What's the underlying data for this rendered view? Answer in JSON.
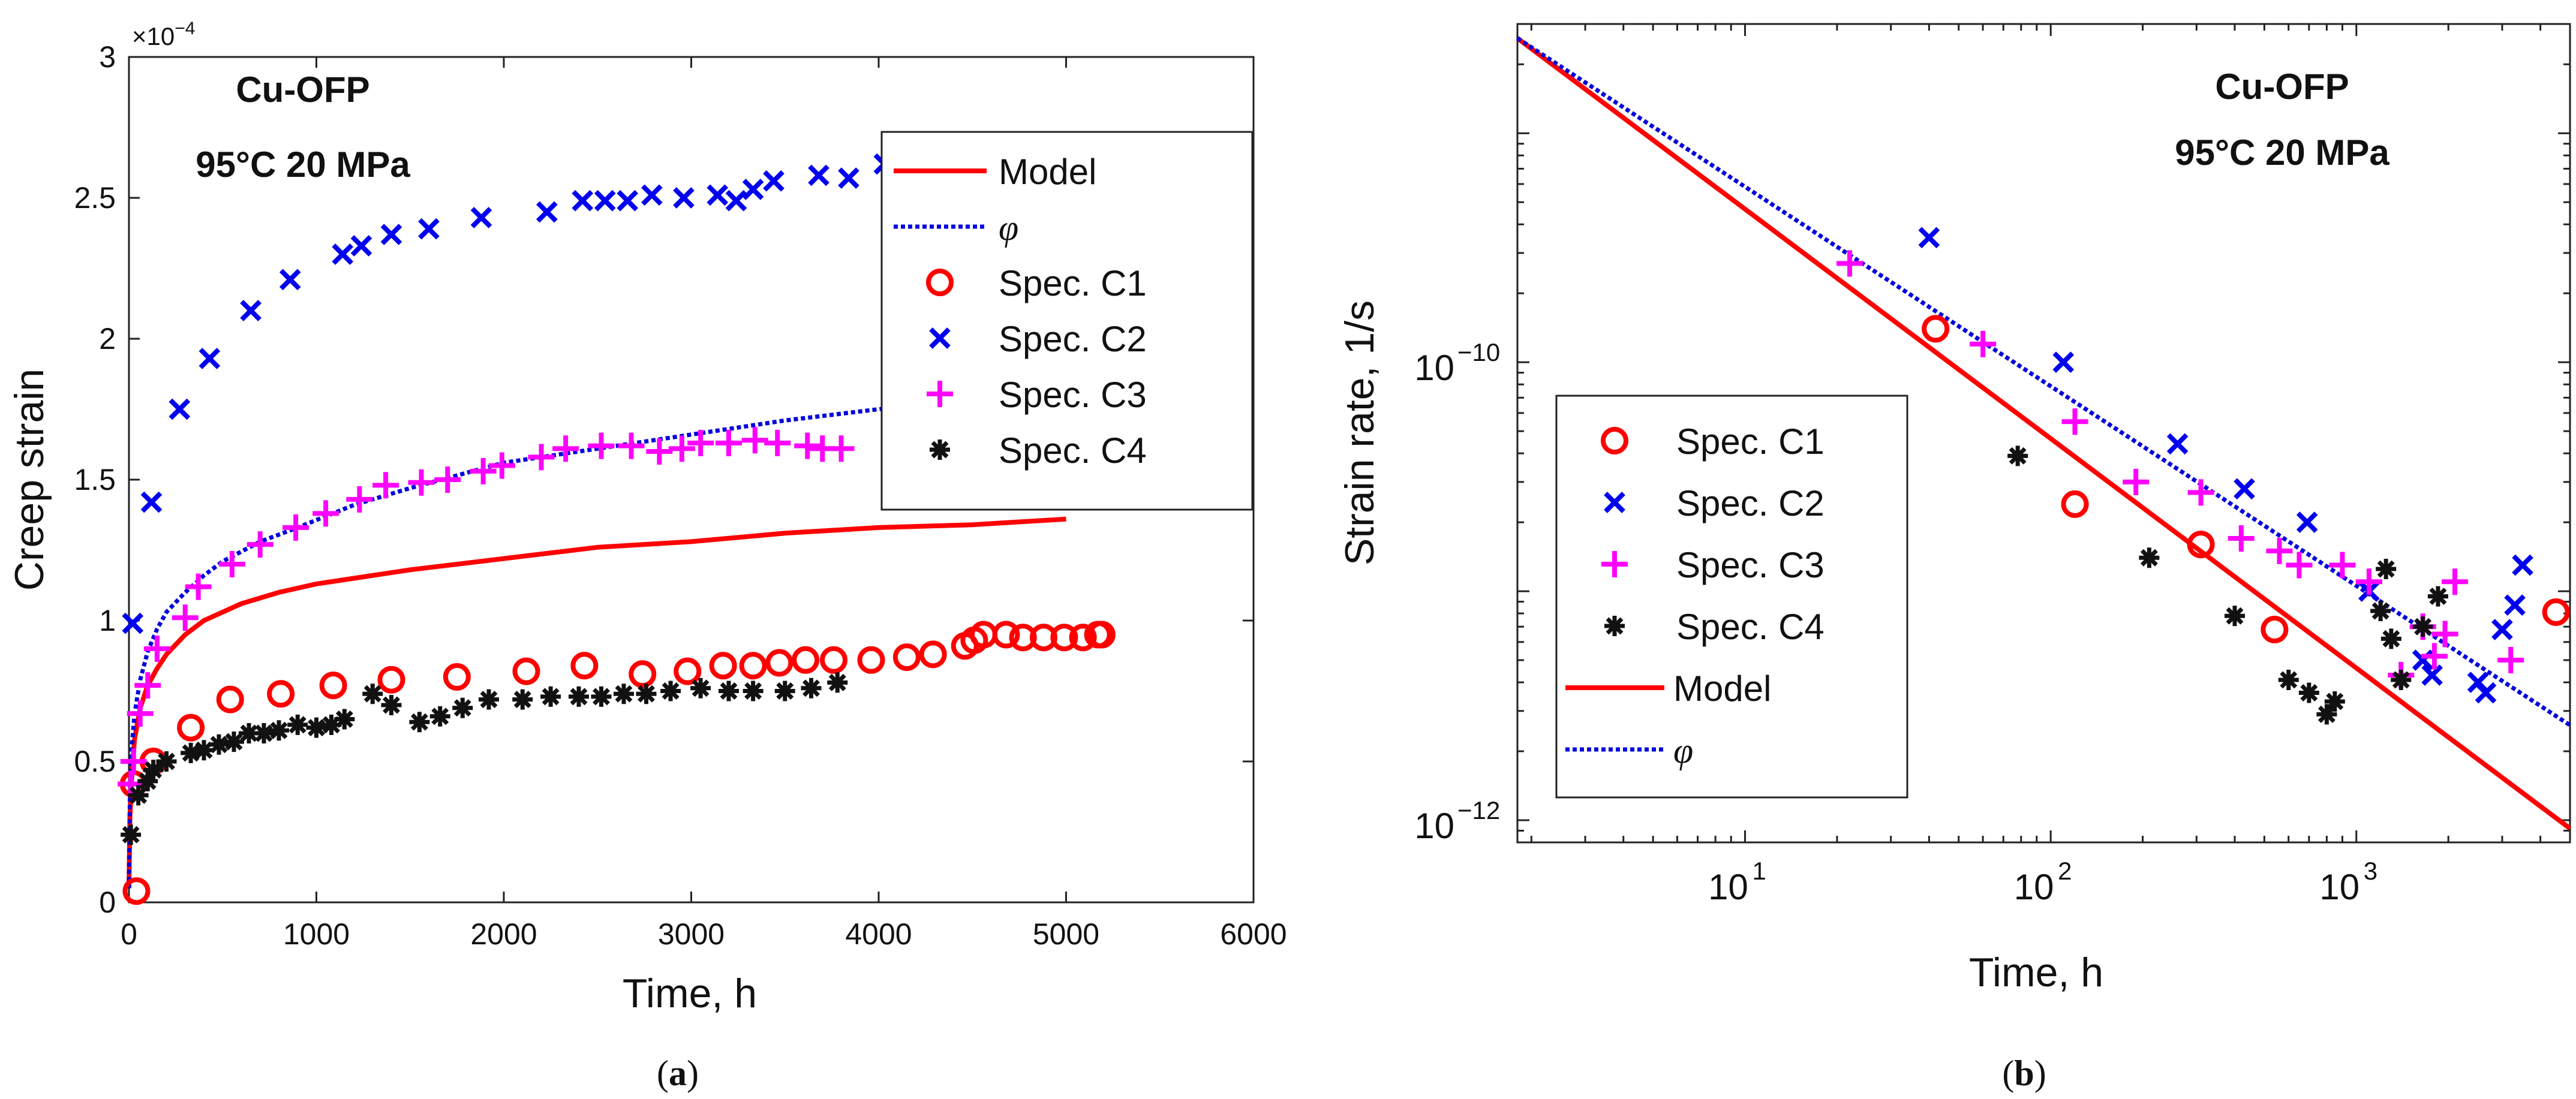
{
  "colors": {
    "model": "#ff0000",
    "phi": "#0000dd",
    "c1": "#ff0000",
    "c2": "#0000ee",
    "c3": "#ff00ff",
    "c4": "#111111",
    "axis": "#222222"
  },
  "chart_data": [
    {
      "panel": "(a)",
      "panel_letter": "a",
      "type": "scatter",
      "title": "",
      "xlabel": "Time, h",
      "ylabel": "Creep strain",
      "exponent_label": "×10",
      "exponent_value": "−4",
      "xlim": [
        0,
        6000
      ],
      "ylim": [
        0,
        3
      ],
      "xticks": [
        0,
        1000,
        2000,
        3000,
        4000,
        5000,
        6000
      ],
      "xtick_labels": [
        "0",
        "1000",
        "2000",
        "3000",
        "4000",
        "5000",
        "6000"
      ],
      "yticks": [
        0,
        0.5,
        1,
        1.5,
        2,
        2.5,
        3
      ],
      "ytick_labels": [
        "0",
        "0.5",
        "1",
        "1.5",
        "2",
        "2.5",
        "3"
      ],
      "annotation": [
        "Cu-OFP",
        "95°C 20 MPa"
      ],
      "legend_position": "top-right",
      "legend": [
        "Model",
        "φ",
        "Spec. C1",
        "Spec. C2",
        "Spec. C3",
        "Spec. C4"
      ],
      "series": [
        {
          "name": "Model",
          "kind": "line",
          "style": "solid",
          "color_key": "model",
          "x": [
            0,
            5,
            15,
            30,
            60,
            100,
            150,
            200,
            300,
            400,
            500,
            600,
            800,
            1000,
            1200,
            1500,
            2000,
            2500,
            3000,
            3500,
            4000,
            4500,
            5000
          ],
          "y": [
            0.05,
            0.3,
            0.45,
            0.58,
            0.69,
            0.77,
            0.83,
            0.88,
            0.95,
            1.0,
            1.03,
            1.06,
            1.1,
            1.13,
            1.15,
            1.18,
            1.22,
            1.26,
            1.28,
            1.31,
            1.33,
            1.34,
            1.36
          ]
        },
        {
          "name": "φ",
          "kind": "line",
          "style": "dotted",
          "color_key": "phi",
          "x": [
            0,
            5,
            15,
            30,
            60,
            100,
            150,
            200,
            300,
            400,
            500,
            700,
            900,
            1200,
            1500,
            2000,
            2500,
            3000,
            3500,
            4000,
            4500,
            5000
          ],
          "y": [
            0.05,
            0.38,
            0.55,
            0.67,
            0.79,
            0.89,
            0.97,
            1.03,
            1.1,
            1.16,
            1.21,
            1.28,
            1.33,
            1.41,
            1.47,
            1.56,
            1.61,
            1.66,
            1.71,
            1.75,
            1.79,
            1.83
          ]
        },
        {
          "name": "Spec. C1",
          "kind": "marker",
          "marker": "circle",
          "color_key": "c1",
          "x": [
            25,
            40,
            130,
            330,
            540,
            810,
            1090,
            1400,
            1750,
            2120,
            2430,
            2740,
            2980,
            3170,
            3330,
            3470,
            3610,
            3760,
            3960,
            4150,
            4290,
            4460,
            4510,
            4560,
            4680,
            4770,
            4880,
            4990,
            5090,
            5170,
            5190
          ],
          "y": [
            0.42,
            0.04,
            0.5,
            0.62,
            0.72,
            0.74,
            0.77,
            0.79,
            0.8,
            0.82,
            0.84,
            0.81,
            0.82,
            0.84,
            0.84,
            0.85,
            0.86,
            0.86,
            0.86,
            0.87,
            0.88,
            0.91,
            0.93,
            0.95,
            0.95,
            0.94,
            0.94,
            0.94,
            0.94,
            0.95,
            0.95
          ]
        },
        {
          "name": "Spec. C2",
          "kind": "marker",
          "marker": "x",
          "color_key": "c2",
          "x": [
            20,
            120,
            270,
            430,
            650,
            860,
            1140,
            1240,
            1400,
            1600,
            1880,
            2230,
            2420,
            2540,
            2660,
            2790,
            2960,
            3140,
            3240,
            3330,
            3440,
            3680,
            3840,
            4030
          ],
          "y": [
            0.99,
            1.42,
            1.75,
            1.93,
            2.1,
            2.21,
            2.3,
            2.33,
            2.37,
            2.39,
            2.43,
            2.45,
            2.49,
            2.49,
            2.49,
            2.51,
            2.5,
            2.51,
            2.49,
            2.53,
            2.56,
            2.58,
            2.57,
            2.62
          ]
        },
        {
          "name": "Spec. C3",
          "kind": "marker",
          "marker": "plus",
          "color_key": "c3",
          "x": [
            10,
            25,
            60,
            100,
            150,
            300,
            370,
            550,
            700,
            890,
            1050,
            1230,
            1370,
            1560,
            1700,
            1890,
            1990,
            2200,
            2330,
            2520,
            2680,
            2830,
            2950,
            3050,
            3200,
            3340,
            3460,
            3620,
            3700,
            3800
          ],
          "y": [
            0.42,
            0.5,
            0.67,
            0.77,
            0.9,
            1.01,
            1.12,
            1.2,
            1.27,
            1.33,
            1.38,
            1.43,
            1.48,
            1.49,
            1.5,
            1.53,
            1.55,
            1.58,
            1.61,
            1.62,
            1.62,
            1.6,
            1.61,
            1.63,
            1.63,
            1.64,
            1.63,
            1.62,
            1.61,
            1.61
          ]
        },
        {
          "name": "Spec. C4",
          "kind": "marker",
          "marker": "asterisk",
          "color_key": "c4",
          "x": [
            10,
            50,
            100,
            130,
            200,
            330,
            400,
            480,
            560,
            640,
            720,
            800,
            900,
            1000,
            1080,
            1150,
            1300,
            1400,
            1550,
            1660,
            1780,
            1920,
            2100,
            2250,
            2400,
            2520,
            2640,
            2760,
            2890,
            3050,
            3200,
            3330,
            3500,
            3640,
            3780
          ],
          "y": [
            0.24,
            0.38,
            0.43,
            0.47,
            0.5,
            0.53,
            0.54,
            0.56,
            0.57,
            0.6,
            0.6,
            0.61,
            0.63,
            0.62,
            0.63,
            0.65,
            0.74,
            0.7,
            0.64,
            0.66,
            0.69,
            0.72,
            0.72,
            0.73,
            0.73,
            0.73,
            0.74,
            0.74,
            0.75,
            0.76,
            0.75,
            0.75,
            0.75,
            0.76,
            0.78
          ]
        }
      ]
    },
    {
      "panel": "(b)",
      "panel_letter": "b",
      "type": "scatter",
      "title": "",
      "xlabel": "Time, h",
      "ylabel": "Strain rate, 1/s",
      "xscale": "log",
      "yscale": "log",
      "xlim": [
        1.8,
        5000
      ],
      "ylim": [
        8e-13,
        3e-09
      ],
      "xticks": [
        10,
        100,
        1000
      ],
      "xtick_labels": [
        {
          "base": "10",
          "exp": "1"
        },
        {
          "base": "10",
          "exp": "2"
        },
        {
          "base": "10",
          "exp": "3"
        }
      ],
      "yticks": [
        1e-12,
        1e-10
      ],
      "ytick_labels": [
        {
          "base": "10",
          "exp": "−12"
        },
        {
          "base": "10",
          "exp": "−10"
        }
      ],
      "annotation": [
        "Cu-OFP",
        "95°C 20 MPa"
      ],
      "legend_position": "bottom-left",
      "legend": [
        "Spec. C1",
        "Spec. C2",
        "Spec. C3",
        "Spec. C4",
        "Model",
        "φ"
      ],
      "series": [
        {
          "name": "Spec. C1",
          "kind": "marker",
          "marker": "circle",
          "color_key": "c1",
          "x": [
            42,
            120,
            310,
            540,
            4500
          ],
          "y": [
            1.4e-10,
            2.4e-11,
            1.6e-11,
            6.8e-12,
            8.1e-12
          ]
        },
        {
          "name": "Spec. C2",
          "kind": "marker",
          "marker": "x",
          "color_key": "c2",
          "x": [
            40,
            110,
            260,
            430,
            690,
            1100,
            1650,
            1770,
            2500,
            2650,
            3000,
            3300,
            3500
          ],
          "y": [
            3.5e-10,
            1e-10,
            4.4e-11,
            2.8e-11,
            2e-11,
            1e-11,
            5e-12,
            4.3e-12,
            4e-12,
            3.6e-12,
            6.8e-12,
            8.7e-12,
            1.3e-11
          ]
        },
        {
          "name": "Spec. C3",
          "kind": "marker",
          "marker": "plus",
          "color_key": "c3",
          "x": [
            22,
            60,
            120,
            190,
            310,
            420,
            560,
            650,
            900,
            1100,
            1400,
            1650,
            1800,
            1950,
            2100,
            3200
          ],
          "y": [
            2.7e-10,
            1.2e-10,
            5.5e-11,
            3e-11,
            2.7e-11,
            1.7e-11,
            1.5e-11,
            1.3e-11,
            1.3e-11,
            1.1e-11,
            4.3e-12,
            7e-12,
            5.2e-12,
            6.5e-12,
            1.1e-11,
            5e-12
          ]
        },
        {
          "name": "Spec. C4",
          "kind": "marker",
          "marker": "asterisk",
          "color_key": "c4",
          "x": [
            78,
            210,
            400,
            600,
            700,
            800,
            850,
            1200,
            1250,
            1300,
            1400,
            1650,
            1850
          ],
          "y": [
            3.9e-11,
            1.4e-11,
            7.8e-12,
            4.1e-12,
            3.6e-12,
            2.9e-12,
            3.3e-12,
            8.2e-12,
            1.25e-11,
            6.2e-12,
            4.1e-12,
            7e-12,
            9.5e-12
          ]
        },
        {
          "name": "Model",
          "kind": "line",
          "style": "solid",
          "color_key": "model",
          "x": [
            1.8,
            5000
          ],
          "y": [
            2.6e-09,
            9.2e-13
          ]
        },
        {
          "name": "φ",
          "kind": "line",
          "style": "dotted",
          "color_key": "phi",
          "x": [
            1.8,
            5000
          ],
          "y": [
            2.6e-09,
            2.6e-12
          ]
        }
      ]
    }
  ]
}
